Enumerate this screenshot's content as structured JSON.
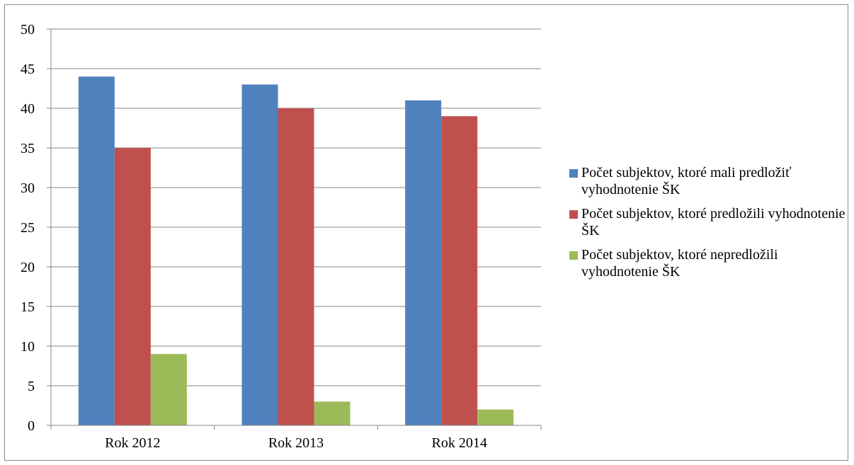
{
  "chart_data": {
    "type": "bar",
    "title": "",
    "xlabel": "",
    "ylabel": "",
    "categories": [
      "Rok 2012",
      "Rok 2013",
      "Rok 2014"
    ],
    "series": [
      {
        "name": "Počet subjektov, ktoré mali predložiť vyhodnotenie ŠK",
        "color": "#4f81bd",
        "values": [
          44,
          43,
          41
        ]
      },
      {
        "name": "Počet subjektov, ktoré predložili vyhodnotenie ŠK",
        "color": "#c0504d",
        "values": [
          35,
          40,
          39
        ]
      },
      {
        "name": "Počet subjektov, ktoré nepredložili vyhodnotenie ŠK",
        "color": "#9bbb59",
        "values": [
          9,
          3,
          2
        ]
      }
    ],
    "ylim": [
      0,
      50
    ],
    "yticks": [
      0,
      5,
      10,
      15,
      20,
      25,
      30,
      35,
      40,
      45,
      50
    ],
    "grid": true,
    "legend_position": "right"
  }
}
